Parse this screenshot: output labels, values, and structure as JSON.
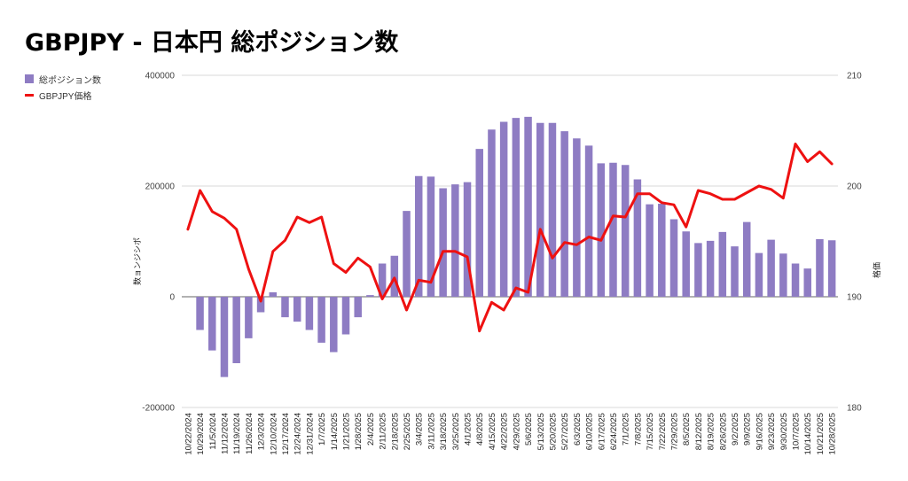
{
  "page": {
    "title": "GBPJPY - 日本円 総ポジション数"
  },
  "colors": {
    "bar": "#8e7cc3",
    "line": "#ee1111",
    "grid": "#d9d9d9",
    "zero": "#666666"
  },
  "chart_data": {
    "type": "bar+line",
    "title": "GBPJPY - 日本円 総ポジション数",
    "legend_position": "top-left",
    "grid": true,
    "ylabel_left": "数ョンジシポ",
    "ylabel_right": "格価",
    "ylim_left": [
      -200000,
      400000
    ],
    "yticks_left": [
      "400000",
      "200000",
      "0",
      "-200000"
    ],
    "ylim_right": [
      180,
      210
    ],
    "yticks_right": [
      "210",
      "200",
      "190",
      "180"
    ],
    "categories": [
      "10/22/2024",
      "10/29/2024",
      "11/5/2024",
      "11/12/2024",
      "11/19/2024",
      "11/26/2024",
      "12/3/2024",
      "12/10/2024",
      "12/17/2024",
      "12/24/2024",
      "12/31/2024",
      "1/7/2025",
      "1/14/2025",
      "1/21/2025",
      "1/28/2025",
      "2/4/2025",
      "2/11/2025",
      "2/18/2025",
      "2/25/2025",
      "3/4/2025",
      "3/11/2025",
      "3/18/2025",
      "3/25/2025",
      "4/1/2025",
      "4/8/2025",
      "4/15/2025",
      "4/22/2025",
      "4/29/2025",
      "5/6/2025",
      "5/13/2025",
      "5/20/2025",
      "5/27/2025",
      "6/3/2025",
      "6/10/2025",
      "6/17/2025",
      "6/24/2025",
      "7/1/2025",
      "7/8/2025",
      "7/15/2025",
      "7/22/2025",
      "7/29/2025",
      "8/5/2025",
      "8/12/2025",
      "8/19/2025",
      "8/26/2025",
      "9/2/2025",
      "9/9/2025",
      "9/16/2025",
      "9/23/2025",
      "9/30/2025",
      "10/7/2025",
      "10/14/2025",
      "10/21/2025",
      "10/28/2025"
    ],
    "series": [
      {
        "name": "総ポジション数",
        "type": "bar",
        "values": [
          0,
          -60000,
          -97000,
          -145000,
          -120000,
          -75000,
          -28000,
          8000,
          -37000,
          -45000,
          -60000,
          -83000,
          -100000,
          -68000,
          -37000,
          3000,
          60000,
          74000,
          155000,
          218000,
          217000,
          196000,
          203000,
          207000,
          267000,
          302000,
          316000,
          323000,
          325000,
          314000,
          314000,
          299000,
          286000,
          273000,
          241000,
          242000,
          238000,
          212000,
          167000,
          168000,
          140000,
          118000,
          97000,
          101000,
          117000,
          91000,
          135000,
          79000,
          103000,
          78000,
          60000,
          51000,
          104000,
          102000
        ]
      },
      {
        "name": "GBPJPY価格",
        "type": "line",
        "values": [
          196.1,
          199.6,
          197.7,
          197.1,
          196.1,
          192.5,
          189.6,
          194.1,
          195.1,
          197.2,
          196.7,
          197.2,
          193.0,
          192.2,
          193.5,
          192.7,
          189.8,
          191.7,
          188.8,
          191.5,
          191.3,
          194.1,
          194.1,
          193.6,
          186.9,
          189.5,
          188.8,
          190.8,
          190.4,
          196.1,
          193.5,
          194.9,
          194.7,
          195.4,
          195.1,
          197.3,
          197.2,
          199.3,
          199.3,
          198.5,
          198.3,
          196.3,
          199.6,
          199.3,
          198.8,
          198.8,
          199.4,
          200.0,
          199.7,
          198.9,
          203.8,
          202.2,
          203.1,
          202.0
        ]
      }
    ]
  }
}
